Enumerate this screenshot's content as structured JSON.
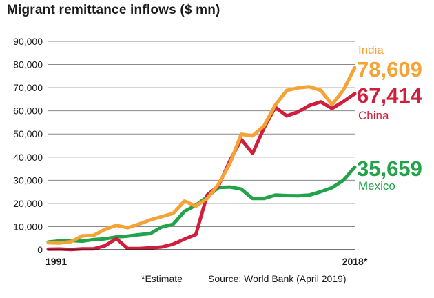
{
  "chart_data": {
    "type": "line",
    "title": "Migrant remittance inflows ($ mn)",
    "xlabel": "",
    "ylabel": "",
    "xlim": [
      1991,
      2018
    ],
    "ylim": [
      0,
      90000
    ],
    "yticks": [
      "0",
      "10,000",
      "20,000",
      "30,000",
      "40,000",
      "50,000",
      "60,000",
      "70,000",
      "80,000",
      "90,000"
    ],
    "ytick_values": [
      0,
      10000,
      20000,
      30000,
      40000,
      50000,
      60000,
      70000,
      80000,
      90000
    ],
    "xtick_labels": [
      {
        "x": 1991,
        "label": "1991"
      },
      {
        "x": 2018,
        "label": "2018*"
      }
    ],
    "grid": true,
    "x": [
      1991,
      1992,
      1993,
      1994,
      1995,
      1996,
      1997,
      1998,
      1999,
      2000,
      2001,
      2002,
      2003,
      2004,
      2005,
      2006,
      2007,
      2008,
      2009,
      2010,
      2011,
      2012,
      2013,
      2014,
      2015,
      2016,
      2017,
      2018
    ],
    "series": [
      {
        "name": "India",
        "color": "#f5a236",
        "label_value": "78,609",
        "values": [
          3000,
          2900,
          3500,
          6000,
          6200,
          8800,
          10500,
          9500,
          11100,
          12900,
          14300,
          15700,
          21000,
          18800,
          22100,
          28300,
          37200,
          49900,
          49200,
          53500,
          62500,
          68800,
          69900,
          70400,
          68900,
          62700,
          69000,
          78609
        ]
      },
      {
        "name": "China",
        "color": "#d01f3c",
        "label_value": "67,414",
        "values": [
          200,
          300,
          100,
          400,
          400,
          1700,
          4800,
          500,
          500,
          800,
          1200,
          2400,
          4600,
          6600,
          23600,
          27600,
          38400,
          47700,
          41600,
          52500,
          61600,
          57800,
          59500,
          62300,
          63900,
          61000,
          64000,
          67414
        ]
      },
      {
        "name": "Mexico",
        "color": "#22a34a",
        "label_value": "35,659",
        "values": [
          3300,
          3800,
          4000,
          3700,
          4400,
          4700,
          5500,
          5900,
          6500,
          7000,
          9800,
          11000,
          16600,
          19200,
          22800,
          26900,
          27100,
          26200,
          22100,
          22100,
          23600,
          23400,
          23300,
          23600,
          25100,
          26800,
          30000,
          35659
        ]
      }
    ]
  },
  "footer": {
    "note": "*Estimate",
    "source": "Source: World Bank (April 2019)"
  }
}
